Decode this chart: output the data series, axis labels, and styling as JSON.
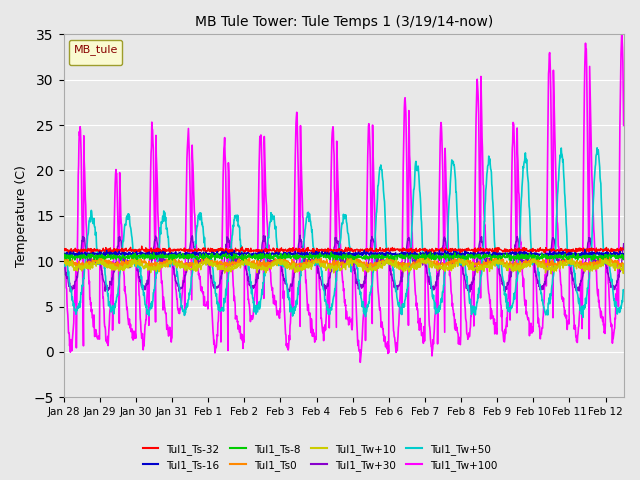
{
  "title": "MB Tule Tower: Tule Temps 1 (3/19/14-now)",
  "ylabel": "Temperature (C)",
  "xlim": [
    0,
    15.5
  ],
  "ylim": [
    -5,
    35
  ],
  "yticks": [
    -5,
    0,
    5,
    10,
    15,
    20,
    25,
    30,
    35
  ],
  "xtick_labels": [
    "Jan 28",
    "Jan 29",
    "Jan 30",
    "Jan 31",
    "Feb 1",
    "Feb 2",
    "Feb 3",
    "Feb 4",
    "Feb 5",
    "Feb 6",
    "Feb 7",
    "Feb 8",
    "Feb 9",
    "Feb 10",
    "Feb 11",
    "Feb 12"
  ],
  "background_color": "#e8e8e8",
  "legend_label": "MB_tule",
  "series_names": [
    "Tul1_Ts-32",
    "Tul1_Ts-16",
    "Tul1_Ts-8",
    "Tul1_Ts0",
    "Tul1_Tw+10",
    "Tul1_Tw+30",
    "Tul1_Tw+50",
    "Tul1_Tw+100"
  ],
  "series_colors": [
    "#ff0000",
    "#0000cc",
    "#00cc00",
    "#ff8800",
    "#cccc00",
    "#8800cc",
    "#00cccc",
    "#ff00ff"
  ],
  "spike_heights": [
    25,
    20,
    25,
    24,
    23,
    24,
    26,
    25,
    25,
    28,
    25,
    30,
    25,
    33,
    34,
    35
  ],
  "trough_depths": [
    0.5,
    1.0,
    1.0,
    4.5,
    0.5,
    3.5,
    0.5,
    2.0,
    -0.5,
    0.5,
    0.5,
    1.5,
    1.5,
    2.0,
    1.5,
    2.0
  ]
}
